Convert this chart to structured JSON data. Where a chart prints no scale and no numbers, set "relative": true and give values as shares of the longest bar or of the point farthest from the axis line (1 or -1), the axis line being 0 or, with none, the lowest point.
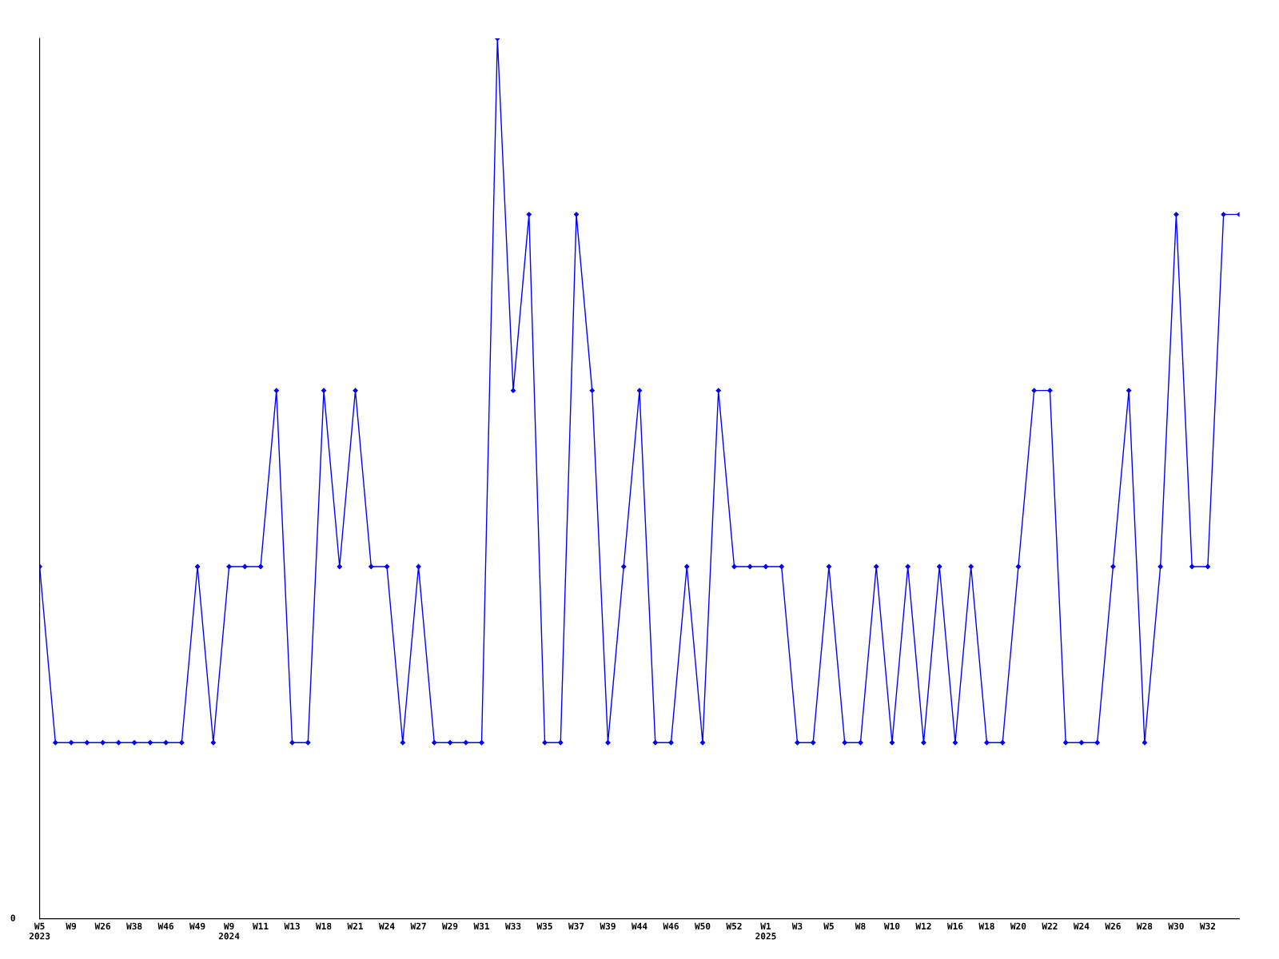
{
  "chart_data": {
    "type": "line",
    "relative": true,
    "annotations": [
      "0"
    ],
    "marker": "diamond",
    "color": "#0000ff",
    "grid": false,
    "legend": false,
    "categories": [
      "W5\n2023",
      null,
      "W9",
      null,
      "W26",
      null,
      "W38",
      null,
      "W46",
      null,
      "W49",
      null,
      "W9\n2024",
      null,
      "W11",
      null,
      "W13",
      null,
      "W18",
      null,
      "W21",
      null,
      "W24",
      null,
      "W27",
      null,
      "W29",
      null,
      "W31",
      null,
      "W33",
      null,
      "W35",
      null,
      "W37",
      null,
      "W39",
      null,
      "W44",
      null,
      "W46",
      null,
      "W50",
      null,
      "W52",
      null,
      "W1\n2025",
      null,
      "W3",
      null,
      "W5",
      null,
      "W8",
      null,
      "W10",
      null,
      "W12",
      null,
      "W16",
      null,
      "W18",
      null,
      "W20",
      null,
      "W22",
      null,
      "W24",
      null,
      "W26",
      null,
      "W28",
      null,
      "W30",
      null,
      "W32",
      null,
      null
    ],
    "values": [
      0.4,
      0.2,
      0.2,
      0.2,
      0.2,
      0.2,
      0.2,
      0.2,
      0.2,
      0.2,
      0.4,
      0.2,
      0.4,
      0.4,
      0.4,
      0.6,
      0.2,
      0.2,
      0.6,
      0.4,
      0.6,
      0.4,
      0.4,
      0.2,
      0.4,
      0.2,
      0.2,
      0.2,
      0.2,
      1.0,
      0.6,
      0.8,
      0.2,
      0.2,
      0.8,
      0.6,
      0.2,
      0.4,
      0.6,
      0.2,
      0.2,
      0.4,
      0.2,
      0.6,
      0.4,
      0.4,
      0.4,
      0.4,
      0.2,
      0.2,
      0.4,
      0.2,
      0.2,
      0.4,
      0.2,
      0.4,
      0.2,
      0.4,
      0.2,
      0.4,
      0.2,
      0.2,
      0.4,
      0.6,
      0.6,
      0.2,
      0.2,
      0.2,
      0.4,
      0.6,
      0.2,
      0.4,
      0.8,
      0.4,
      0.4,
      0.8,
      0.8
    ]
  }
}
